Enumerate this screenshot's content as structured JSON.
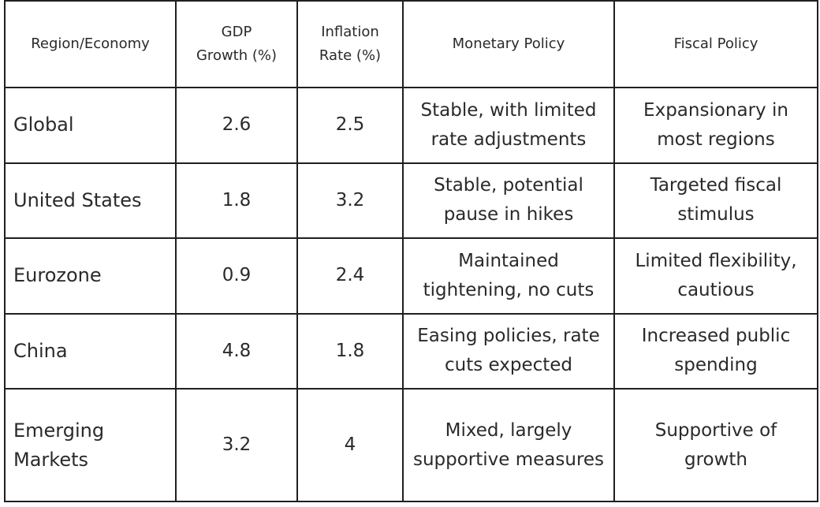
{
  "table": {
    "headers": {
      "region": "Region/Economy",
      "gdp": "GDP Growth (%)",
      "inflation": "Inflation Rate (%)",
      "monetary": "Monetary Policy",
      "fiscal": "Fiscal Policy"
    },
    "rows": [
      {
        "region": "Global",
        "gdp": "2.6",
        "inflation": "2.5",
        "monetary": "Stable, with limited rate adjustments",
        "fiscal": "Expansionary in most regions"
      },
      {
        "region": "United States",
        "gdp": "1.8",
        "inflation": "3.2",
        "monetary": "Stable, potential pause in hikes",
        "fiscal": "Targeted fiscal stimulus"
      },
      {
        "region": "Eurozone",
        "gdp": "0.9",
        "inflation": "2.4",
        "monetary": "Maintained tightening, no cuts",
        "fiscal": "Limited flexibility, cautious"
      },
      {
        "region": "China",
        "gdp": "4.8",
        "inflation": "1.8",
        "monetary": "Easing policies, rate cuts expected",
        "fiscal": "Increased public spending"
      },
      {
        "region": "Emerging Markets",
        "gdp": "3.2",
        "inflation": "4",
        "monetary": "Mixed, largely supportive measures",
        "fiscal": "Supportive of growth"
      }
    ]
  }
}
